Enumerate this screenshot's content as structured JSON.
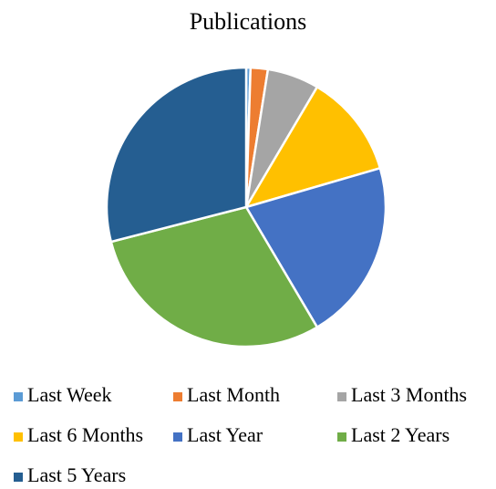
{
  "chart_data": {
    "type": "pie",
    "title": "Publications",
    "categories": [
      "Last Week",
      "Last Month",
      "Last 3 Months",
      "Last 6 Months",
      "Last Year",
      "Last 2 Years",
      "Last 5 Years"
    ],
    "values": [
      0.5,
      2,
      6,
      12,
      21,
      29.5,
      29
    ],
    "colors": [
      "#5b9bd5",
      "#ed7d31",
      "#a5a5a5",
      "#ffc000",
      "#4472c4",
      "#70ad47",
      "#255e91"
    ],
    "legend": "bottom"
  }
}
